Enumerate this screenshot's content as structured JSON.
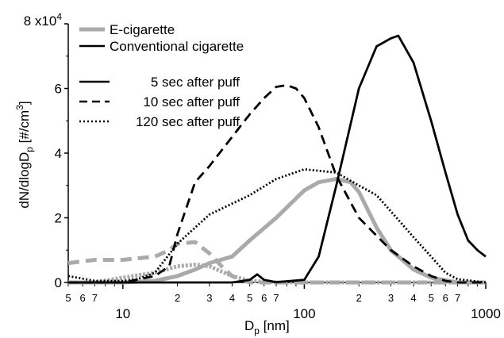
{
  "chart_data": {
    "type": "line",
    "xscale": "log",
    "xlim": [
      5,
      1000
    ],
    "ylim": [
      0,
      80000
    ],
    "xlabel": {
      "main": "D",
      "sub": "p",
      "unit": " [nm]"
    },
    "ylabel": {
      "p1": "dN/dlogD",
      "sub": "p",
      "p2": " [#/cm",
      "sup": "3",
      "p3": "]"
    },
    "y_ticks": [
      {
        "value": 0,
        "label": "0"
      },
      {
        "value": 20000,
        "label": "2"
      },
      {
        "value": 40000,
        "label": "4"
      },
      {
        "value": 60000,
        "label": "6"
      },
      {
        "value": 80000,
        "label": "8 x10",
        "exp": "4"
      }
    ],
    "x_major_ticks": [
      {
        "value": 10,
        "label": "10"
      },
      {
        "value": 100,
        "label": "100"
      },
      {
        "value": 1000,
        "label": "1000"
      }
    ],
    "x_minor_ticks": [
      {
        "value": 5,
        "label": "5"
      },
      {
        "value": 6,
        "label": "6"
      },
      {
        "value": 7,
        "label": "7"
      },
      {
        "value": 20,
        "label": "2"
      },
      {
        "value": 30,
        "label": "3"
      },
      {
        "value": 40,
        "label": "4"
      },
      {
        "value": 50,
        "label": "5"
      },
      {
        "value": 60,
        "label": "6"
      },
      {
        "value": 70,
        "label": "7"
      },
      {
        "value": 200,
        "label": "2"
      },
      {
        "value": 300,
        "label": "3"
      },
      {
        "value": 400,
        "label": "4"
      },
      {
        "value": 500,
        "label": "5"
      },
      {
        "value": 600,
        "label": "6"
      },
      {
        "value": 700,
        "label": "7"
      }
    ],
    "x_unlabeled_ticks": [
      8,
      9,
      80,
      90,
      800,
      900
    ],
    "legend_source": [
      {
        "name": "E-cigarette",
        "color": "#aaaaaa"
      },
      {
        "name": "Conventional cigarette",
        "color": "#000000"
      }
    ],
    "legend_time": [
      {
        "name": "5 sec after puff",
        "dash": "solid"
      },
      {
        "name": "10 sec after puff",
        "dash": "dashed"
      },
      {
        "name": "120 sec after puff",
        "dash": "dotted"
      }
    ],
    "series": [
      {
        "source": "Conventional cigarette",
        "time": "5 sec after puff",
        "color": "#000000",
        "dash": "solid",
        "x": [
          5,
          20,
          40,
          50,
          55,
          60,
          70,
          100,
          120,
          150,
          200,
          250,
          300,
          330,
          400,
          500,
          600,
          700,
          800,
          900,
          1000
        ],
        "y": [
          0,
          0,
          0,
          800,
          2500,
          800,
          100,
          800,
          8000,
          30000,
          60000,
          73000,
          75500,
          76300,
          68000,
          50000,
          34000,
          21000,
          13000,
          10000,
          8000
        ]
      },
      {
        "source": "Conventional cigarette",
        "time": "10 sec after puff",
        "color": "#000000",
        "dash": "dashed",
        "x": [
          5,
          10,
          15,
          18,
          20,
          25,
          30,
          40,
          50,
          60,
          70,
          80,
          90,
          100,
          120,
          150,
          200,
          300,
          400,
          500,
          600,
          700,
          1000
        ],
        "y": [
          0,
          0,
          2000,
          5000,
          15000,
          31000,
          36000,
          45000,
          52000,
          57000,
          60500,
          61000,
          60000,
          57000,
          48000,
          33000,
          20000,
          10000,
          5000,
          2000,
          500,
          0,
          0
        ]
      },
      {
        "source": "Conventional cigarette",
        "time": "120 sec after puff",
        "color": "#000000",
        "dash": "dotted",
        "x": [
          5,
          7,
          10,
          12,
          15,
          20,
          30,
          50,
          70,
          100,
          150,
          200,
          250,
          300,
          400,
          500,
          600,
          700,
          1000
        ],
        "y": [
          2000,
          500,
          500,
          1000,
          3000,
          12000,
          21000,
          27000,
          32000,
          35000,
          34000,
          30000,
          27000,
          22000,
          14000,
          8000,
          3000,
          1000,
          0
        ]
      },
      {
        "source": "E-cigarette",
        "time": "5 sec after puff",
        "color": "#aaaaaa",
        "dash": "solid",
        "x": [
          5,
          10,
          15,
          20,
          25,
          30,
          40,
          50,
          70,
          100,
          120,
          150,
          180,
          200,
          250,
          300,
          400,
          500,
          700,
          1000
        ],
        "y": [
          0,
          0,
          500,
          2000,
          4000,
          6000,
          8000,
          13000,
          20000,
          28500,
          31000,
          32000,
          31000,
          28000,
          17000,
          10000,
          4000,
          1500,
          0,
          0
        ]
      },
      {
        "source": "E-cigarette",
        "time": "10 sec after puff",
        "color": "#aaaaaa",
        "dash": "dashed",
        "x": [
          5,
          7,
          10,
          15,
          18,
          20,
          25,
          30,
          35,
          40,
          50,
          60,
          70,
          1000
        ],
        "y": [
          6000,
          7000,
          7000,
          8000,
          10000,
          12000,
          12500,
          9000,
          5000,
          2000,
          0,
          0,
          0,
          0
        ]
      },
      {
        "source": "E-cigarette",
        "time": "120 sec after puff",
        "color": "#aaaaaa",
        "dash": "dotted",
        "x": [
          5,
          7,
          10,
          15,
          20,
          25,
          30,
          40,
          50,
          70,
          1000
        ],
        "y": [
          0,
          0,
          1500,
          3000,
          5000,
          5500,
          5000,
          2000,
          500,
          0,
          0
        ]
      }
    ]
  }
}
